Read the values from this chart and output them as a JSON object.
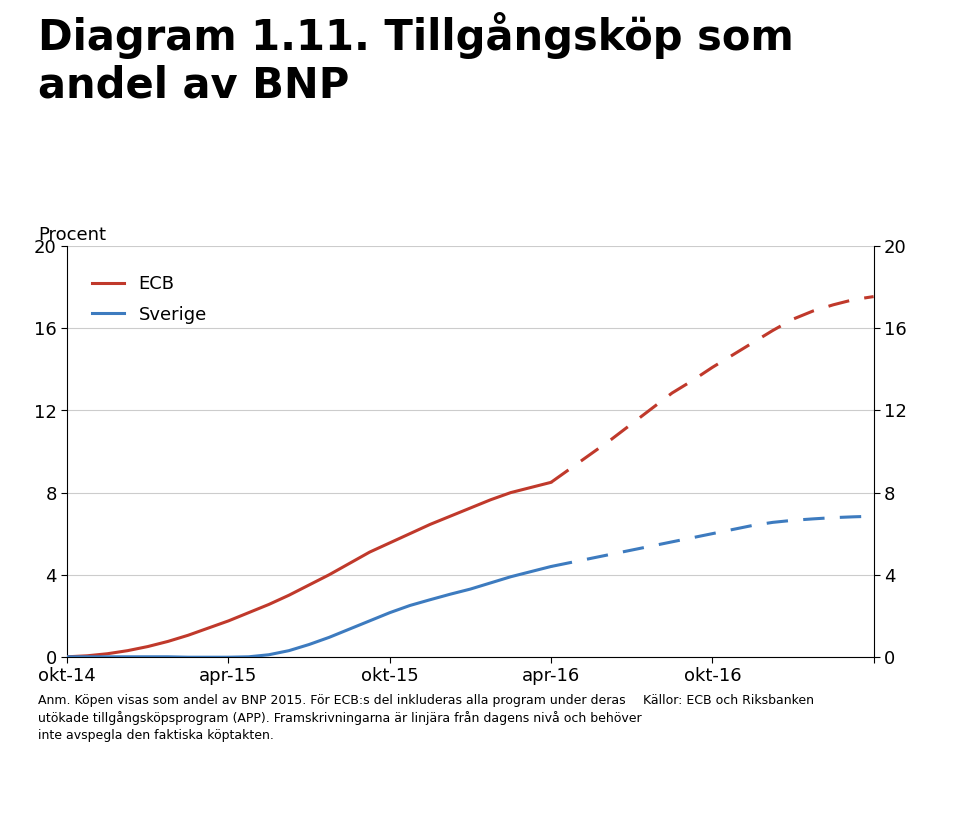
{
  "title_line1": "Diagram 1.11. Tillgångsköp som",
  "title_line2": "andel av BNP",
  "ylabel_left": "Procent",
  "ylim": [
    0,
    20
  ],
  "yticks": [
    0,
    4,
    8,
    12,
    16,
    20
  ],
  "ecb_solid_x": [
    0,
    0.5,
    1,
    1.5,
    2,
    2.5,
    3,
    3.5,
    4,
    4.5,
    5,
    5.5,
    6,
    6.5,
    7,
    7.5,
    8,
    8.5,
    9,
    9.5,
    10,
    10.5,
    11,
    11.5,
    12
  ],
  "ecb_solid_y": [
    0.0,
    0.05,
    0.15,
    0.3,
    0.5,
    0.75,
    1.05,
    1.4,
    1.75,
    2.15,
    2.55,
    3.0,
    3.5,
    4.0,
    4.55,
    5.1,
    5.55,
    6.0,
    6.45,
    6.85,
    7.25,
    7.65,
    8.0,
    8.25,
    8.5
  ],
  "ecb_dashed_x": [
    12,
    12.5,
    13,
    13.5,
    14,
    14.5,
    15,
    15.5,
    16,
    16.5,
    17,
    17.5,
    18,
    18.5,
    19,
    19.5,
    20
  ],
  "ecb_dashed_y": [
    8.5,
    9.2,
    9.9,
    10.6,
    11.35,
    12.1,
    12.85,
    13.45,
    14.1,
    14.7,
    15.3,
    15.9,
    16.45,
    16.85,
    17.15,
    17.4,
    17.55
  ],
  "sverige_solid_x": [
    0,
    0.5,
    1,
    1.5,
    2,
    2.5,
    3,
    3.5,
    4,
    4.5,
    5,
    5.5,
    6,
    6.5,
    7,
    7.5,
    8,
    8.5,
    9,
    9.5,
    10,
    10.5,
    11,
    11.5,
    12
  ],
  "sverige_solid_y": [
    0.0,
    0.0,
    0.0,
    0.0,
    0.0,
    0.0,
    -0.02,
    -0.02,
    -0.02,
    0.0,
    0.1,
    0.3,
    0.6,
    0.95,
    1.35,
    1.75,
    2.15,
    2.5,
    2.78,
    3.05,
    3.3,
    3.6,
    3.9,
    4.15,
    4.4
  ],
  "sverige_dashed_x": [
    12,
    12.5,
    13,
    13.5,
    14,
    14.5,
    15,
    15.5,
    16,
    16.5,
    17,
    17.5,
    18,
    18.5,
    19,
    19.5,
    20
  ],
  "sverige_dashed_y": [
    4.4,
    4.6,
    4.8,
    5.0,
    5.2,
    5.4,
    5.6,
    5.8,
    6.0,
    6.2,
    6.4,
    6.55,
    6.65,
    6.72,
    6.78,
    6.82,
    6.85
  ],
  "ecb_color": "#c0392b",
  "sverige_color": "#3d7bbf",
  "background_color": "#ffffff",
  "grid_color": "#cccccc",
  "title_fontsize": 30,
  "axis_fontsize": 13,
  "tick_fontsize": 13,
  "legend_fontsize": 13,
  "footnote_text": "Anm. Köpen visas som andel av BNP 2015. För ECB:s del inkluderas alla program under deras\nutökade tillgångsköpsprogram (APP). Framskrivningarna är linjära från dagens nivå och behöver\ninte avspegla den faktiska köptakten.",
  "source_text": "Källor: ECB och Riksbanken",
  "riksbank_blue": "#1a5ab5",
  "x_tick_positions": [
    0,
    4,
    8,
    12,
    16,
    20
  ],
  "x_tick_labels": [
    "okt-14",
    "apr-15",
    "okt-15",
    "apr-16",
    "okt-16",
    ""
  ]
}
